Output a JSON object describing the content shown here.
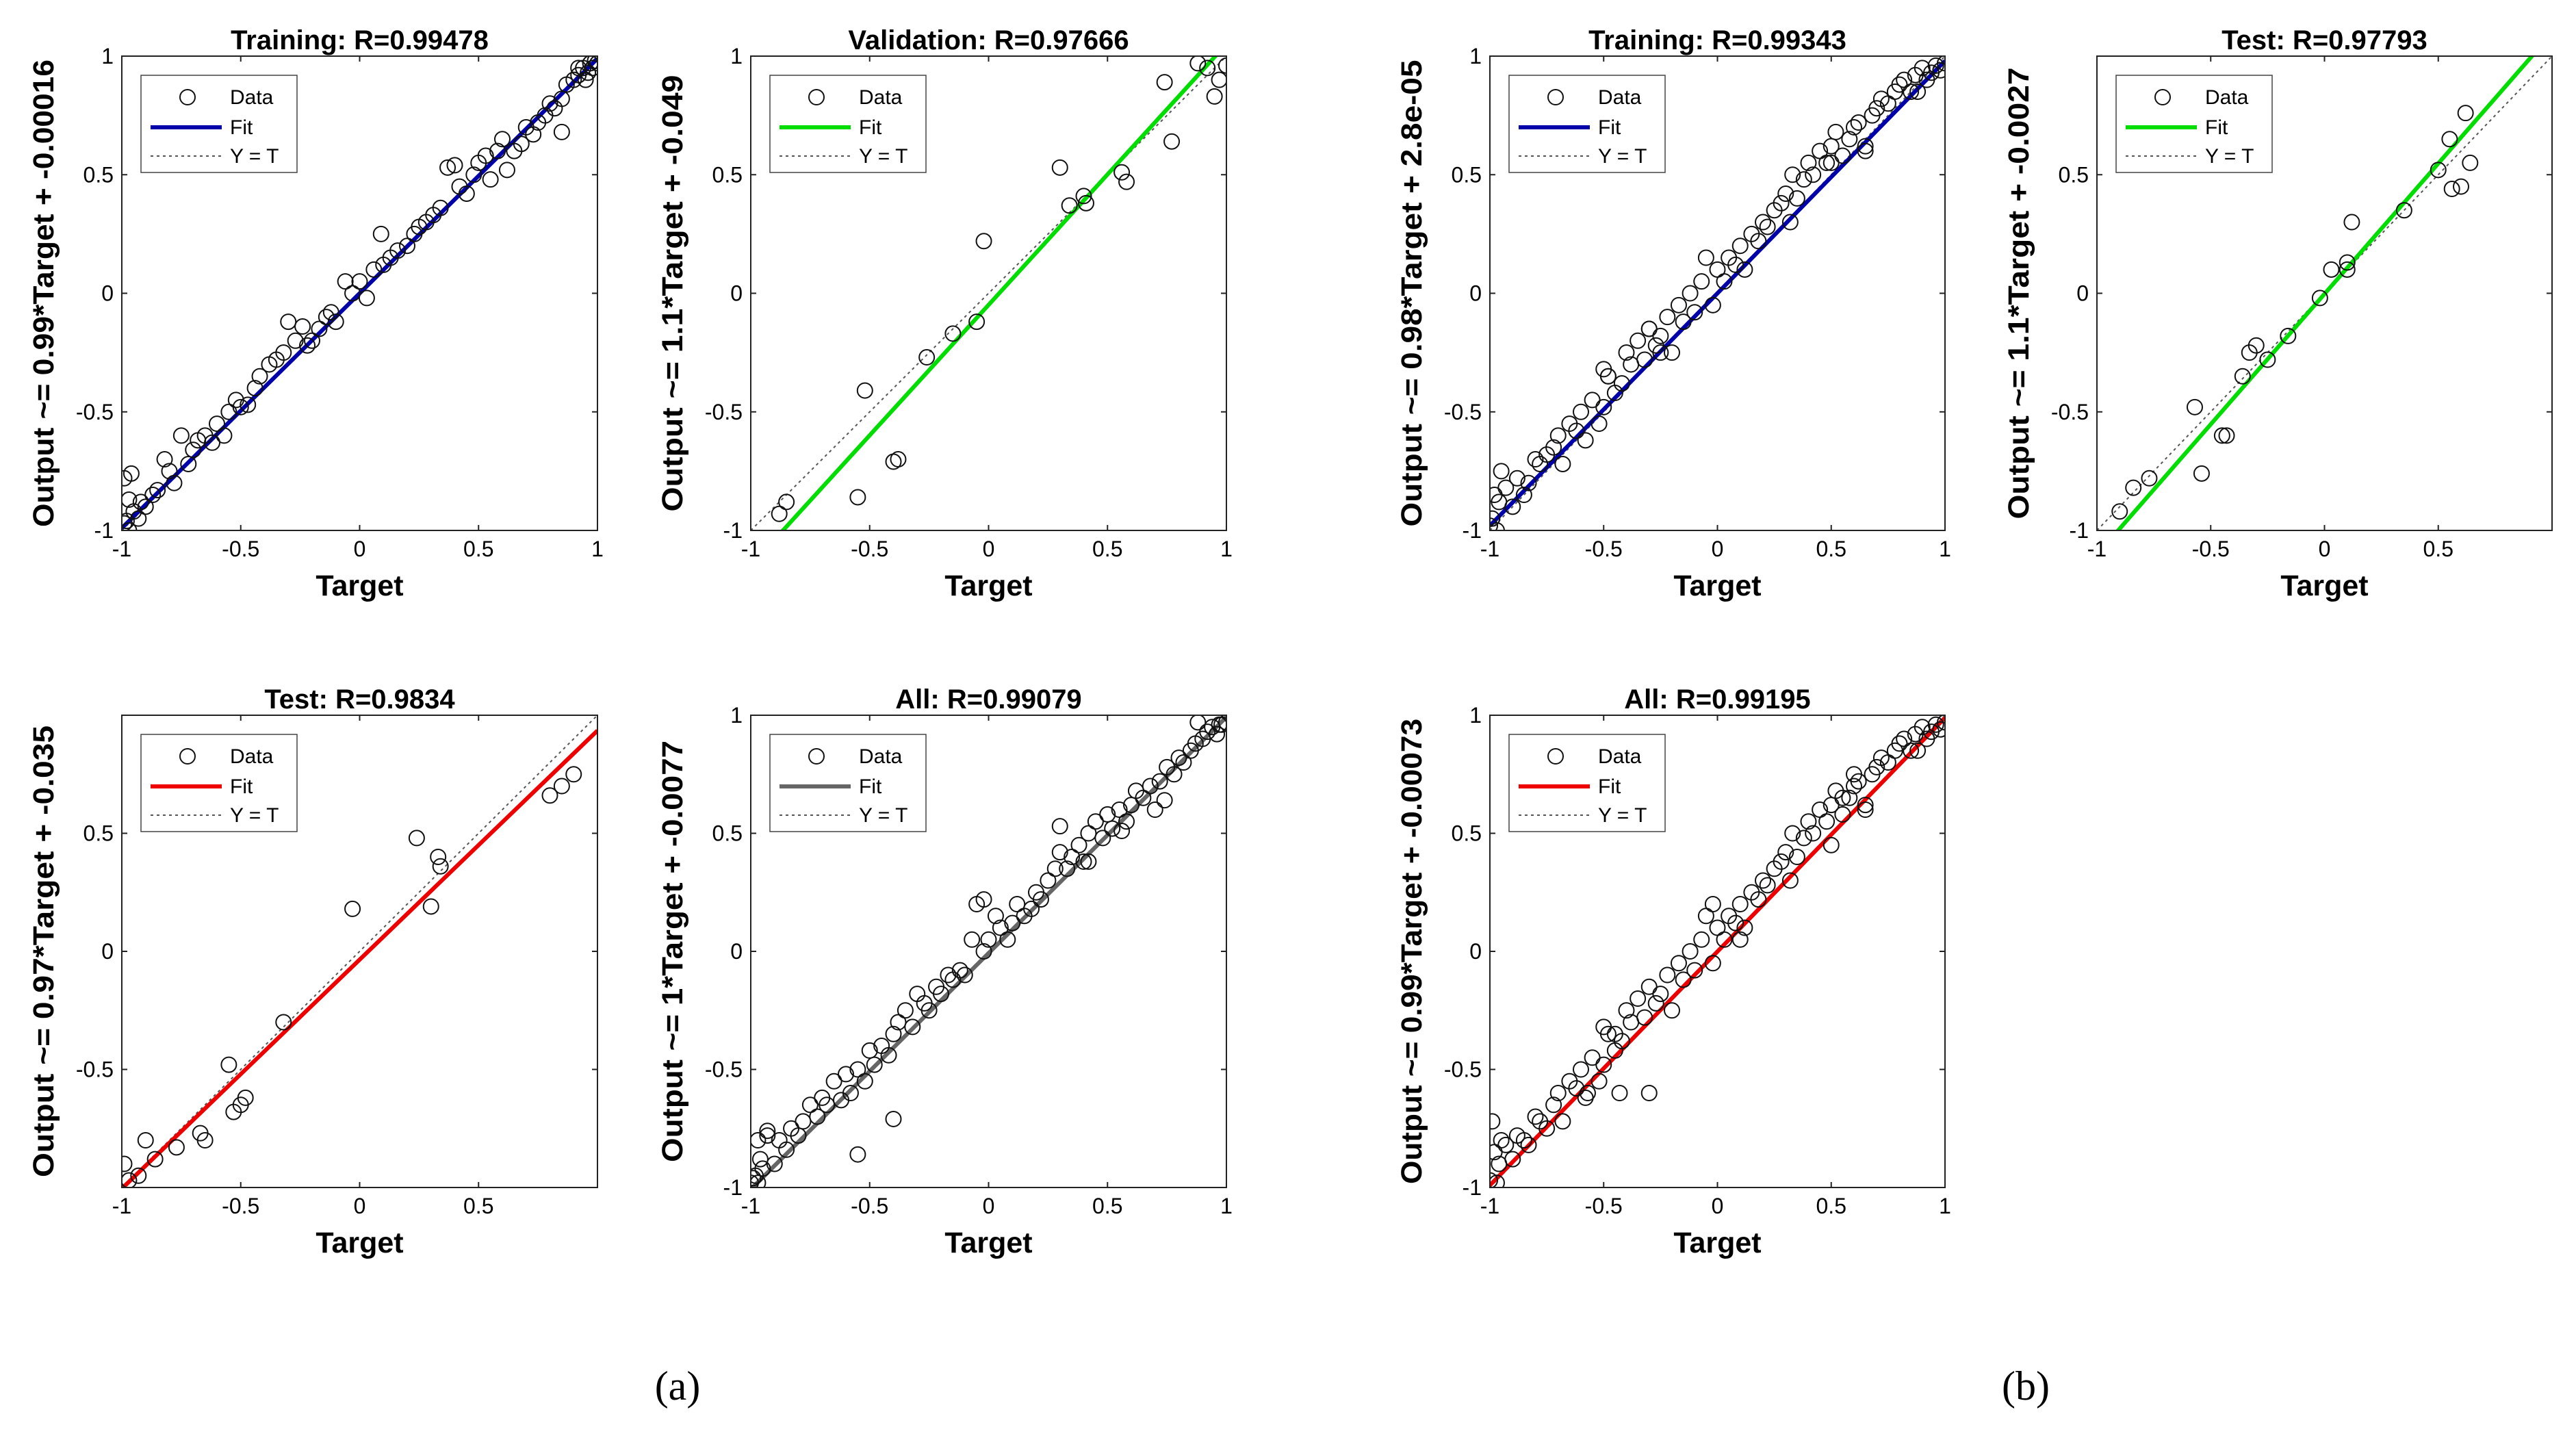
{
  "subfigure_labels": {
    "a": "(a)",
    "b": "(b)"
  },
  "legend_labels": [
    "Data",
    "Fit",
    "Y = T"
  ],
  "xlabel": "Target",
  "chart_data": [
    {
      "panel": "a",
      "type": "scatter",
      "title": "Training: R=0.99478",
      "xlabel": "Target",
      "ylabel": "Output ~= 0.99*Target + -0.00016",
      "xlim": [
        -1,
        1
      ],
      "ylim": [
        -1,
        1
      ],
      "xticks": [
        -1,
        -0.5,
        0,
        0.5,
        1
      ],
      "yticks": [
        -1,
        -0.5,
        0,
        0.5,
        1
      ],
      "fit_color": "#0000aa",
      "fit": {
        "slope": 0.99,
        "intercept": -0.00016
      },
      "legend": [
        "Data",
        "Fit",
        "Y = T"
      ],
      "legend_position": "top-left",
      "x": [
        -0.99,
        -0.98,
        -0.97,
        -0.97,
        -0.95,
        -0.92,
        -0.9,
        -0.87,
        -0.85,
        -0.82,
        -0.8,
        -0.78,
        -0.75,
        -0.72,
        -0.7,
        -0.68,
        -0.65,
        -0.62,
        -0.6,
        -0.57,
        -0.55,
        -0.52,
        -0.5,
        -0.47,
        -0.44,
        -0.42,
        -0.38,
        -0.35,
        -0.32,
        -0.3,
        -0.27,
        -0.24,
        -0.22,
        -0.2,
        -0.17,
        -0.14,
        -0.12,
        -0.1,
        -0.06,
        -0.03,
        0.0,
        0.03,
        0.06,
        0.09,
        0.1,
        0.13,
        0.16,
        0.2,
        0.23,
        0.25,
        0.28,
        0.31,
        0.34,
        0.37,
        0.4,
        0.42,
        0.45,
        0.48,
        0.5,
        0.53,
        0.55,
        0.58,
        0.6,
        0.62,
        0.65,
        0.68,
        0.7,
        0.73,
        0.75,
        0.78,
        0.8,
        0.82,
        0.85,
        0.87,
        0.9,
        0.92,
        0.94,
        0.95,
        0.96,
        0.97,
        0.98,
        0.99,
        1.0,
        -0.99,
        -0.96,
        -0.93,
        0.85,
        0.92
      ],
      "y": [
        -0.97,
        -0.96,
        -1.0,
        -0.87,
        -0.92,
        -0.88,
        -0.9,
        -0.85,
        -0.83,
        -0.7,
        -0.75,
        -0.8,
        -0.6,
        -0.72,
        -0.66,
        -0.62,
        -0.6,
        -0.63,
        -0.55,
        -0.6,
        -0.5,
        -0.45,
        -0.48,
        -0.47,
        -0.4,
        -0.35,
        -0.3,
        -0.28,
        -0.25,
        -0.12,
        -0.2,
        -0.14,
        -0.22,
        -0.2,
        -0.15,
        -0.1,
        -0.08,
        -0.12,
        0.05,
        0.0,
        0.05,
        -0.02,
        0.1,
        0.25,
        0.12,
        0.15,
        0.18,
        0.2,
        0.25,
        0.28,
        0.3,
        0.33,
        0.36,
        0.53,
        0.54,
        0.45,
        0.42,
        0.5,
        0.55,
        0.58,
        0.48,
        0.6,
        0.65,
        0.52,
        0.6,
        0.63,
        0.7,
        0.67,
        0.72,
        0.75,
        0.8,
        0.78,
        0.82,
        0.88,
        0.9,
        0.92,
        0.95,
        0.9,
        0.93,
        0.97,
        0.95,
        0.98,
        0.97,
        -0.78,
        -0.76,
        -0.95,
        0.68,
        0.95
      ]
    },
    {
      "panel": "a",
      "type": "scatter",
      "title": "Validation: R=0.97666",
      "xlabel": "Target",
      "ylabel": "Output ~= 1.1*Target + -0.049",
      "xlim": [
        -1,
        1
      ],
      "ylim": [
        -1,
        1
      ],
      "xticks": [
        -1,
        -0.5,
        0,
        0.5,
        1
      ],
      "yticks": [
        -1,
        -0.5,
        0,
        0.5,
        1
      ],
      "fit_color": "#00dd00",
      "fit": {
        "slope": 1.1,
        "intercept": -0.049
      },
      "legend": [
        "Data",
        "Fit",
        "Y = T"
      ],
      "legend_position": "top-left",
      "x": [
        -0.88,
        -0.85,
        -0.55,
        -0.52,
        -0.4,
        -0.38,
        -0.26,
        -0.15,
        -0.05,
        -0.02,
        0.3,
        0.34,
        0.4,
        0.41,
        0.56,
        0.58,
        0.74,
        0.77,
        0.88,
        0.92,
        0.95,
        0.97,
        1.0
      ],
      "y": [
        -0.93,
        -0.88,
        -0.86,
        -0.41,
        -0.71,
        -0.7,
        -0.27,
        -0.17,
        -0.12,
        0.22,
        0.53,
        0.37,
        0.41,
        0.38,
        0.51,
        0.47,
        0.89,
        0.64,
        0.97,
        0.95,
        0.83,
        0.9,
        0.96
      ]
    },
    {
      "panel": "a",
      "type": "scatter",
      "title": "Test: R=0.9834",
      "xlabel": "Target",
      "ylabel": "Output ~= 0.97*Target + -0.035",
      "xlim": [
        -1,
        1
      ],
      "ylim": [
        -1,
        1
      ],
      "xticks": [
        -1,
        -0.5,
        0,
        0.5
      ],
      "yticks": [
        -0.5,
        0,
        0.5
      ],
      "fit_color": "#ee0000",
      "fit": {
        "slope": 0.97,
        "intercept": -0.035
      },
      "legend": [
        "Data",
        "Fit",
        "Y = T"
      ],
      "legend_position": "top-left",
      "x": [
        -0.99,
        -0.97,
        -0.93,
        -0.9,
        -0.86,
        -0.77,
        -0.67,
        -0.65,
        -0.55,
        -0.53,
        -0.5,
        -0.48,
        -0.32,
        -0.03,
        0.24,
        0.3,
        0.33,
        0.34,
        0.8,
        0.85,
        0.9
      ],
      "y": [
        -0.9,
        -0.97,
        -0.95,
        -0.8,
        -0.88,
        -0.83,
        -0.77,
        -0.8,
        -0.48,
        -0.68,
        -0.65,
        -0.62,
        -0.3,
        0.18,
        0.48,
        0.19,
        0.4,
        0.36,
        0.66,
        0.7,
        0.75
      ]
    },
    {
      "panel": "a",
      "type": "scatter",
      "title": "All: R=0.99079",
      "xlabel": "Target",
      "ylabel": "Output ~= 1*Target + -0.0077",
      "xlim": [
        -1,
        1
      ],
      "ylim": [
        -1,
        1
      ],
      "xticks": [
        -1,
        -0.5,
        0,
        0.5,
        1
      ],
      "yticks": [
        -1,
        -0.5,
        0,
        0.5,
        1
      ],
      "fit_color": "#666666",
      "fit": {
        "slope": 1.0,
        "intercept": -0.0077
      },
      "legend": [
        "Data",
        "Fit",
        "Y = T"
      ],
      "legend_position": "top-left",
      "x": [
        -1.0,
        -0.99,
        -0.98,
        -0.97,
        -0.96,
        -0.95,
        -0.93,
        -0.9,
        -0.88,
        -0.85,
        -0.83,
        -0.8,
        -0.78,
        -0.75,
        -0.72,
        -0.7,
        -0.68,
        -0.65,
        -0.62,
        -0.6,
        -0.58,
        -0.55,
        -0.52,
        -0.5,
        -0.48,
        -0.45,
        -0.42,
        -0.4,
        -0.38,
        -0.35,
        -0.32,
        -0.3,
        -0.27,
        -0.25,
        -0.22,
        -0.2,
        -0.17,
        -0.15,
        -0.12,
        -0.1,
        -0.07,
        -0.05,
        -0.02,
        0.0,
        0.03,
        0.05,
        0.08,
        0.1,
        0.12,
        0.15,
        0.18,
        0.2,
        0.22,
        0.25,
        0.28,
        0.3,
        0.33,
        0.35,
        0.38,
        0.4,
        0.42,
        0.45,
        0.48,
        0.5,
        0.52,
        0.55,
        0.58,
        0.6,
        0.62,
        0.65,
        0.68,
        0.7,
        0.72,
        0.75,
        0.78,
        0.8,
        0.82,
        0.85,
        0.87,
        0.9,
        0.92,
        0.94,
        0.96,
        0.98,
        1.0,
        -0.97,
        -0.93,
        -0.55,
        -0.4,
        -0.02,
        0.3,
        0.42,
        0.56,
        0.74,
        0.88,
        0.97
      ],
      "y": [
        -0.98,
        -0.96,
        -0.95,
        -0.98,
        -0.88,
        -0.92,
        -0.78,
        -0.9,
        -0.8,
        -0.84,
        -0.75,
        -0.78,
        -0.72,
        -0.65,
        -0.7,
        -0.62,
        -0.65,
        -0.55,
        -0.63,
        -0.52,
        -0.6,
        -0.5,
        -0.55,
        -0.42,
        -0.48,
        -0.4,
        -0.44,
        -0.35,
        -0.3,
        -0.25,
        -0.32,
        -0.18,
        -0.22,
        -0.25,
        -0.15,
        -0.18,
        -0.1,
        -0.12,
        -0.08,
        -0.1,
        0.05,
        0.2,
        0.0,
        0.05,
        0.15,
        0.1,
        0.05,
        0.12,
        0.2,
        0.15,
        0.18,
        0.25,
        0.22,
        0.3,
        0.35,
        0.42,
        0.35,
        0.4,
        0.45,
        0.38,
        0.5,
        0.55,
        0.48,
        0.58,
        0.52,
        0.6,
        0.55,
        0.62,
        0.68,
        0.65,
        0.7,
        0.6,
        0.72,
        0.78,
        0.75,
        0.82,
        0.8,
        0.85,
        0.88,
        0.9,
        0.93,
        0.95,
        0.92,
        0.96,
        0.97,
        -0.8,
        -0.76,
        -0.86,
        -0.71,
        0.22,
        0.53,
        0.38,
        0.51,
        0.64,
        0.97,
        0.96
      ]
    },
    {
      "panel": "b",
      "type": "scatter",
      "title": "Training: R=0.99343",
      "xlabel": "Target",
      "ylabel": "Output ~= 0.98*Target + 2.8e-05",
      "xlim": [
        -1,
        1
      ],
      "ylim": [
        -1,
        1
      ],
      "xticks": [
        -1,
        -0.5,
        0,
        0.5,
        1
      ],
      "yticks": [
        -1,
        -0.5,
        0,
        0.5,
        1
      ],
      "fit_color": "#0000aa",
      "fit": {
        "slope": 0.98,
        "intercept": 2.8e-05
      },
      "legend": [
        "Data",
        "Fit",
        "Y = T"
      ],
      "legend_position": "top-left",
      "x": [
        -1.0,
        -0.99,
        -0.98,
        -0.97,
        -0.96,
        -0.95,
        -0.93,
        -0.9,
        -0.88,
        -0.85,
        -0.83,
        -0.8,
        -0.78,
        -0.75,
        -0.72,
        -0.7,
        -0.68,
        -0.65,
        -0.62,
        -0.6,
        -0.58,
        -0.55,
        -0.52,
        -0.5,
        -0.48,
        -0.45,
        -0.42,
        -0.4,
        -0.38,
        -0.35,
        -0.32,
        -0.3,
        -0.27,
        -0.25,
        -0.22,
        -0.2,
        -0.17,
        -0.15,
        -0.12,
        -0.1,
        -0.07,
        -0.05,
        -0.02,
        0.0,
        0.03,
        0.05,
        0.08,
        0.1,
        0.12,
        0.15,
        0.18,
        0.2,
        0.22,
        0.25,
        0.28,
        0.3,
        0.33,
        0.35,
        0.38,
        0.4,
        0.42,
        0.45,
        0.48,
        0.5,
        0.52,
        0.55,
        0.58,
        0.6,
        0.62,
        0.65,
        0.68,
        0.7,
        0.72,
        0.75,
        0.78,
        0.8,
        0.82,
        0.85,
        0.87,
        0.9,
        0.92,
        0.94,
        0.96,
        0.98,
        1.0,
        -0.5,
        -0.48,
        -0.3,
        -0.25,
        0.32,
        0.5,
        0.65,
        0.88
      ],
      "y": [
        -0.98,
        -0.95,
        -0.85,
        -1.0,
        -0.88,
        -0.75,
        -0.82,
        -0.9,
        -0.78,
        -0.85,
        -0.8,
        -0.7,
        -0.72,
        -0.68,
        -0.65,
        -0.6,
        -0.72,
        -0.55,
        -0.58,
        -0.5,
        -0.62,
        -0.45,
        -0.55,
        -0.48,
        -0.35,
        -0.42,
        -0.38,
        -0.25,
        -0.3,
        -0.2,
        -0.28,
        -0.15,
        -0.22,
        -0.18,
        -0.1,
        -0.25,
        -0.05,
        -0.12,
        0.0,
        -0.08,
        0.05,
        0.15,
        -0.05,
        0.1,
        0.05,
        0.15,
        0.12,
        0.2,
        0.1,
        0.25,
        0.22,
        0.3,
        0.28,
        0.35,
        0.38,
        0.42,
        0.5,
        0.4,
        0.48,
        0.55,
        0.5,
        0.6,
        0.55,
        0.62,
        0.68,
        0.58,
        0.65,
        0.7,
        0.72,
        0.6,
        0.75,
        0.78,
        0.82,
        0.8,
        0.85,
        0.88,
        0.9,
        0.85,
        0.92,
        0.95,
        0.9,
        0.93,
        0.96,
        0.94,
        0.97,
        -0.32,
        -0.35,
        -0.15,
        -0.25,
        0.3,
        0.55,
        0.62,
        0.85
      ]
    },
    {
      "panel": "b",
      "type": "scatter",
      "title": "Test: R=0.97793",
      "xlabel": "Target",
      "ylabel": "Output ~= 1.1*Target + -0.0027",
      "xlim": [
        -1,
        1
      ],
      "ylim": [
        -1,
        1
      ],
      "xticks": [
        -1,
        -0.5,
        0,
        0.5
      ],
      "yticks": [
        -1,
        -0.5,
        0,
        0.5
      ],
      "fit_color": "#00dd00",
      "fit": {
        "slope": 1.1,
        "intercept": -0.0027
      },
      "legend": [
        "Data",
        "Fit",
        "Y = T"
      ],
      "legend_position": "top-left",
      "x": [
        -0.9,
        -0.84,
        -0.77,
        -0.57,
        -0.54,
        -0.45,
        -0.43,
        -0.36,
        -0.33,
        -0.3,
        -0.25,
        -0.16,
        -0.02,
        0.03,
        0.1,
        0.1,
        0.12,
        0.35,
        0.5,
        0.55,
        0.56,
        0.6,
        0.62,
        0.64
      ],
      "y": [
        -0.92,
        -0.82,
        -0.78,
        -0.48,
        -0.76,
        -0.6,
        -0.6,
        -0.35,
        -0.25,
        -0.22,
        -0.28,
        -0.18,
        -0.02,
        0.1,
        0.13,
        0.1,
        0.3,
        0.35,
        0.52,
        0.65,
        0.44,
        0.45,
        0.76,
        0.55
      ]
    },
    {
      "panel": "b",
      "type": "scatter",
      "title": "All: R=0.99195",
      "xlabel": "Target",
      "ylabel": "Output ~= 0.99*Target + -0.00073",
      "xlim": [
        -1,
        1
      ],
      "ylim": [
        -1,
        1
      ],
      "xticks": [
        -1,
        -0.5,
        0,
        0.5,
        1
      ],
      "yticks": [
        -1,
        -0.5,
        0,
        0.5,
        1
      ],
      "fit_color": "#ee0000",
      "fit": {
        "slope": 0.99,
        "intercept": -0.00073
      },
      "legend": [
        "Data",
        "Fit",
        "Y = T"
      ],
      "legend_position": "top-left",
      "x": [
        -1.0,
        -0.99,
        -0.98,
        -0.97,
        -0.96,
        -0.95,
        -0.93,
        -0.9,
        -0.88,
        -0.85,
        -0.83,
        -0.8,
        -0.78,
        -0.75,
        -0.72,
        -0.7,
        -0.68,
        -0.65,
        -0.62,
        -0.6,
        -0.58,
        -0.55,
        -0.52,
        -0.5,
        -0.48,
        -0.45,
        -0.42,
        -0.4,
        -0.38,
        -0.35,
        -0.32,
        -0.3,
        -0.27,
        -0.25,
        -0.22,
        -0.2,
        -0.17,
        -0.15,
        -0.12,
        -0.1,
        -0.07,
        -0.05,
        -0.02,
        0.0,
        0.03,
        0.05,
        0.08,
        0.1,
        0.12,
        0.15,
        0.18,
        0.2,
        0.22,
        0.25,
        0.28,
        0.3,
        0.33,
        0.35,
        0.38,
        0.4,
        0.42,
        0.45,
        0.48,
        0.5,
        0.52,
        0.55,
        0.58,
        0.6,
        0.62,
        0.65,
        0.68,
        0.7,
        0.72,
        0.75,
        0.78,
        0.8,
        0.82,
        0.85,
        0.87,
        0.9,
        0.92,
        0.94,
        0.96,
        0.98,
        1.0,
        -0.5,
        -0.45,
        -0.3,
        0.32,
        0.5,
        0.55,
        0.65,
        0.88,
        -0.57,
        -0.43,
        -0.02,
        0.1,
        0.6
      ],
      "y": [
        -0.97,
        -0.72,
        -0.85,
        -0.98,
        -0.9,
        -0.8,
        -0.82,
        -0.88,
        -0.78,
        -0.8,
        -0.82,
        -0.7,
        -0.72,
        -0.75,
        -0.65,
        -0.6,
        -0.72,
        -0.55,
        -0.58,
        -0.5,
        -0.62,
        -0.45,
        -0.55,
        -0.48,
        -0.35,
        -0.42,
        -0.38,
        -0.25,
        -0.3,
        -0.2,
        -0.28,
        -0.15,
        -0.22,
        -0.18,
        -0.1,
        -0.25,
        -0.05,
        -0.12,
        0.0,
        -0.08,
        0.05,
        0.15,
        -0.05,
        0.1,
        0.05,
        0.15,
        0.12,
        0.2,
        0.1,
        0.25,
        0.22,
        0.3,
        0.28,
        0.35,
        0.38,
        0.42,
        0.5,
        0.4,
        0.48,
        0.55,
        0.5,
        0.6,
        0.55,
        0.62,
        0.68,
        0.58,
        0.65,
        0.7,
        0.72,
        0.6,
        0.75,
        0.78,
        0.82,
        0.8,
        0.85,
        0.88,
        0.9,
        0.85,
        0.92,
        0.95,
        0.9,
        0.93,
        0.96,
        0.94,
        0.97,
        -0.32,
        -0.35,
        -0.6,
        0.3,
        0.45,
        0.65,
        0.62,
        0.85,
        -0.6,
        -0.6,
        0.2,
        0.05,
        0.75
      ]
    }
  ]
}
